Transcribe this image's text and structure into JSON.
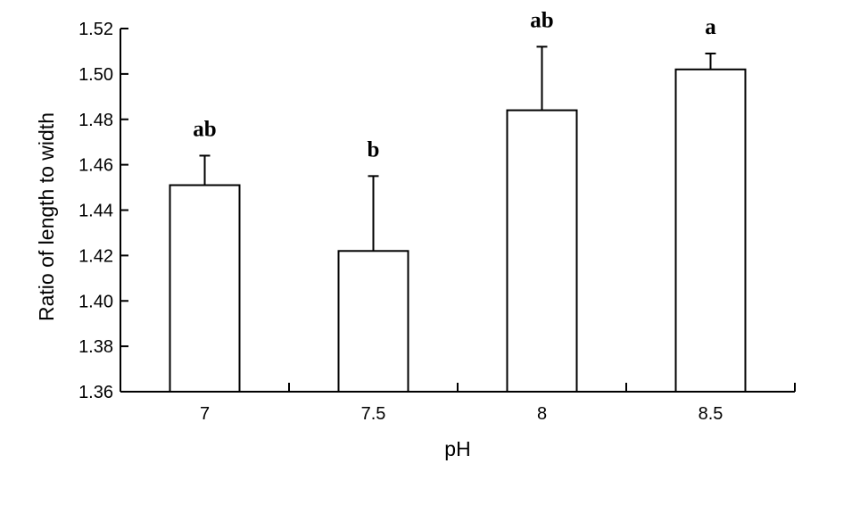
{
  "chart_data": {
    "type": "bar",
    "title": "",
    "xlabel": "pH",
    "ylabel": "Ratio of length to width",
    "categories": [
      "7",
      "7.5",
      "8",
      "8.5"
    ],
    "values": [
      1.451,
      1.422,
      1.484,
      1.502
    ],
    "error_upper": [
      0.013,
      0.033,
      0.028,
      0.007
    ],
    "significance_labels": [
      "ab",
      "b",
      "ab",
      "a"
    ],
    "ylim": [
      1.36,
      1.52
    ],
    "yticks": [
      "1.36",
      "1.38",
      "1.40",
      "1.42",
      "1.44",
      "1.46",
      "1.48",
      "1.50",
      "1.52"
    ],
    "grid": false,
    "legend": "none",
    "bar_fill": "#ffffff",
    "bar_stroke": "#000000"
  }
}
